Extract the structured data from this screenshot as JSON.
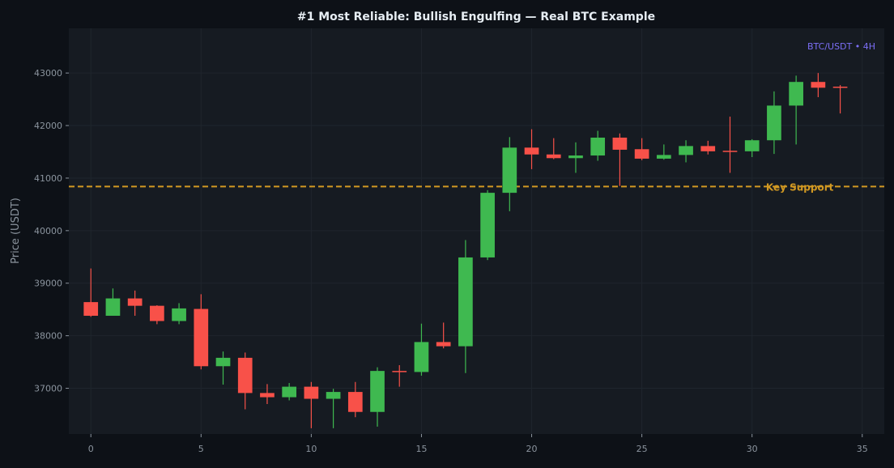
{
  "chart_data": {
    "type": "candlestick",
    "title": "#1 Most Reliable: Bullish Engulfing — Real BTC Example",
    "ylabel": "Price (USDT)",
    "xlabel": "",
    "watermark": "BTC/USDT • 4H",
    "xlim": [
      -1,
      36
    ],
    "ylim": [
      36130,
      43850
    ],
    "x_ticks": [
      0,
      5,
      10,
      15,
      20,
      25,
      30,
      35
    ],
    "x_tick_labels": [
      "0",
      "5",
      "10",
      "15",
      "20",
      "25",
      "30",
      "35"
    ],
    "y_ticks": [
      37000,
      38000,
      39000,
      40000,
      41000,
      42000,
      43000
    ],
    "y_tick_labels": [
      "37000",
      "38000",
      "39000",
      "40000",
      "41000",
      "42000",
      "43000"
    ],
    "grid": true,
    "candles": [
      {
        "x": 0,
        "open": 38640,
        "high": 39280,
        "low": 38360,
        "close": 38380
      },
      {
        "x": 1,
        "open": 38380,
        "high": 38900,
        "low": 38380,
        "close": 38710
      },
      {
        "x": 2,
        "open": 38710,
        "high": 38860,
        "low": 38380,
        "close": 38570
      },
      {
        "x": 3,
        "open": 38570,
        "high": 38580,
        "low": 38220,
        "close": 38280
      },
      {
        "x": 4,
        "open": 38280,
        "high": 38620,
        "low": 38220,
        "close": 38520
      },
      {
        "x": 5,
        "open": 38510,
        "high": 38790,
        "low": 37360,
        "close": 37420
      },
      {
        "x": 6,
        "open": 37420,
        "high": 37700,
        "low": 37070,
        "close": 37580
      },
      {
        "x": 7,
        "open": 37580,
        "high": 37680,
        "low": 36600,
        "close": 36910
      },
      {
        "x": 8,
        "open": 36910,
        "high": 37080,
        "low": 36700,
        "close": 36830
      },
      {
        "x": 9,
        "open": 36830,
        "high": 37100,
        "low": 36770,
        "close": 37030
      },
      {
        "x": 10,
        "open": 37030,
        "high": 37120,
        "low": 36240,
        "close": 36800
      },
      {
        "x": 11,
        "open": 36800,
        "high": 36990,
        "low": 36240,
        "close": 36930
      },
      {
        "x": 12,
        "open": 36930,
        "high": 37120,
        "low": 36450,
        "close": 36550
      },
      {
        "x": 13,
        "open": 36550,
        "high": 37400,
        "low": 36270,
        "close": 37330
      },
      {
        "x": 14,
        "open": 37330,
        "high": 37440,
        "low": 37030,
        "close": 37310
      },
      {
        "x": 15,
        "open": 37310,
        "high": 38230,
        "low": 37240,
        "close": 37880
      },
      {
        "x": 16,
        "open": 37880,
        "high": 38250,
        "low": 37760,
        "close": 37800
      },
      {
        "x": 17,
        "open": 37800,
        "high": 39820,
        "low": 37290,
        "close": 39490
      },
      {
        "x": 18,
        "open": 39490,
        "high": 40770,
        "low": 39440,
        "close": 40720
      },
      {
        "x": 19,
        "open": 40720,
        "high": 41780,
        "low": 40370,
        "close": 41580
      },
      {
        "x": 20,
        "open": 41580,
        "high": 41930,
        "low": 41170,
        "close": 41450
      },
      {
        "x": 21,
        "open": 41450,
        "high": 41760,
        "low": 41360,
        "close": 41380
      },
      {
        "x": 22,
        "open": 41380,
        "high": 41680,
        "low": 41100,
        "close": 41430
      },
      {
        "x": 23,
        "open": 41430,
        "high": 41900,
        "low": 41330,
        "close": 41770
      },
      {
        "x": 24,
        "open": 41770,
        "high": 41850,
        "low": 40850,
        "close": 41540
      },
      {
        "x": 25,
        "open": 41550,
        "high": 41760,
        "low": 41340,
        "close": 41370
      },
      {
        "x": 26,
        "open": 41370,
        "high": 41640,
        "low": 41350,
        "close": 41440
      },
      {
        "x": 27,
        "open": 41440,
        "high": 41720,
        "low": 41300,
        "close": 41610
      },
      {
        "x": 28,
        "open": 41610,
        "high": 41710,
        "low": 41450,
        "close": 41510
      },
      {
        "x": 29,
        "open": 41520,
        "high": 42170,
        "low": 41100,
        "close": 41510
      },
      {
        "x": 30,
        "open": 41510,
        "high": 41740,
        "low": 41400,
        "close": 41720
      },
      {
        "x": 31,
        "open": 41720,
        "high": 42650,
        "low": 41460,
        "close": 42380
      },
      {
        "x": 32,
        "open": 42380,
        "high": 42950,
        "low": 41640,
        "close": 42830
      },
      {
        "x": 33,
        "open": 42830,
        "high": 43000,
        "low": 42540,
        "close": 42720
      },
      {
        "x": 34,
        "open": 42740,
        "high": 42770,
        "low": 42230,
        "close": 42730
      }
    ],
    "annotations": [
      {
        "type": "hline",
        "y": 40840,
        "label": "Key Support",
        "style": "dashed"
      }
    ],
    "colors": {
      "up": "#3fb950",
      "down": "#f85149",
      "support": "#d29922",
      "watermark": "#7c6ff7",
      "figure_bg": "#0d1117",
      "plot_bg": "#161b22",
      "grid": "#1f252d",
      "tick_text": "#8b949e",
      "title_text": "#e6edf3"
    }
  }
}
